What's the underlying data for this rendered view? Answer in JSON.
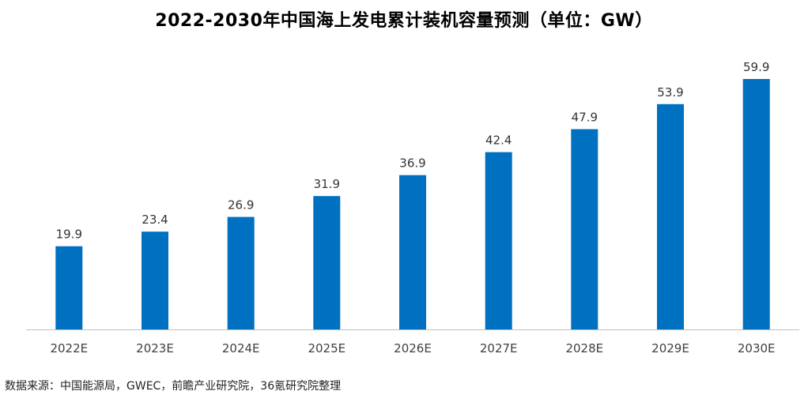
{
  "chart_data": {
    "type": "bar",
    "title": "2022-2030年中国海上发电累计装机容量预测（单位：GW）",
    "categories": [
      "2022E",
      "2023E",
      "2024E",
      "2025E",
      "2026E",
      "2027E",
      "2028E",
      "2029E",
      "2030E"
    ],
    "values": [
      19.9,
      23.4,
      26.9,
      31.9,
      36.9,
      42.4,
      47.9,
      53.9,
      59.9
    ],
    "xlabel": "",
    "ylabel": "",
    "ylim": [
      0,
      60
    ],
    "grid": false,
    "legend": "none",
    "data_labels": true,
    "bar_color": "#0070C0",
    "axis_color": "#bfbfbf"
  },
  "footer": {
    "source": "数据来源：中国能源局，GWEC，前瞻产业研究院，36氪研究院整理"
  }
}
